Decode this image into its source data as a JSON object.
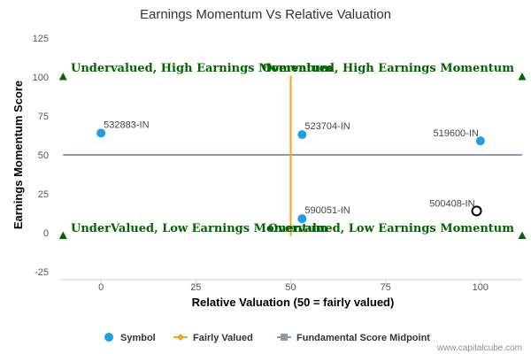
{
  "chart_data": {
    "type": "scatter",
    "title": "Earnings Momentum Vs Relative Valuation",
    "xlabel": "Relative Valuation (50 = fairly valued)",
    "ylabel": "Earnings Momentum Score",
    "xlim": [
      -11,
      111
    ],
    "ylim": [
      -25,
      125
    ],
    "x_ticks": [
      0,
      25,
      50,
      75,
      100
    ],
    "y_ticks": [
      -25,
      0,
      25,
      50,
      75,
      100,
      125
    ],
    "grid": false,
    "legend_position": "bottom",
    "colors": {
      "symbol": "#1ba1e2",
      "fairly_valued": "#f7a21b",
      "midpoint": "#8f98a8",
      "quadrant_text": "#006600",
      "highlight_edge": "#000000"
    },
    "series": [
      {
        "name": "Symbol",
        "points": [
          {
            "label": "532883-IN",
            "x": 0,
            "y": 64
          },
          {
            "label": "523704-IN",
            "x": 53,
            "y": 63
          },
          {
            "label": "519600-IN",
            "x": 100,
            "y": 59
          },
          {
            "label": "590051-IN",
            "x": 53,
            "y": 9
          },
          {
            "label": "500408-IN",
            "x": 99,
            "y": 14,
            "highlight": true
          }
        ]
      },
      {
        "name": "Fairly Valued",
        "x_value": 50,
        "y_range": [
          -2,
          101
        ]
      },
      {
        "name": "Fundamental Score Midpoint",
        "y_value": 50,
        "x_range": [
          -10,
          111
        ]
      }
    ],
    "quadrant_markers": [
      {
        "x": -10,
        "y": 100,
        "direction": "up"
      },
      {
        "x": 111,
        "y": 100,
        "direction": "up"
      },
      {
        "x": -10,
        "y": -2,
        "direction": "up"
      },
      {
        "x": 111,
        "y": -2,
        "direction": "up"
      }
    ],
    "quadrant_labels": [
      {
        "text": "Undervalued, High Earnings Momentum",
        "anchor": "top-left"
      },
      {
        "text": "Overvalued, High Earnings Momentum",
        "anchor": "top-right"
      },
      {
        "text": "UnderValued, Low Earnings Momentum",
        "anchor": "bottom-left"
      },
      {
        "text": "Overvalued, Low Earnings Momentum",
        "anchor": "bottom-right"
      }
    ],
    "legend": [
      "Symbol",
      "Fairly Valued",
      "Fundamental Score Midpoint"
    ]
  },
  "credit": "www.capitalcube.com"
}
